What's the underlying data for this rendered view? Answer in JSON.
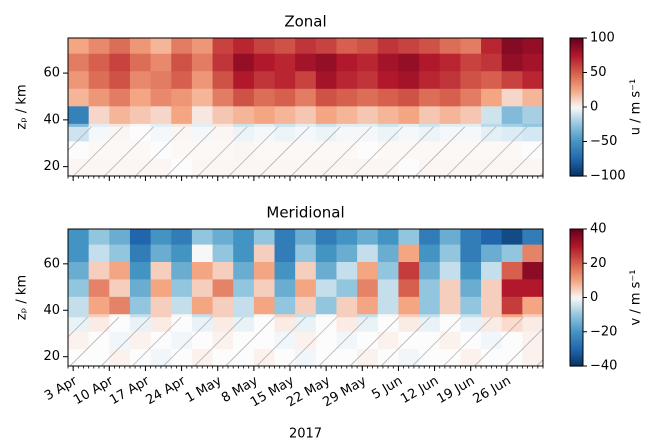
{
  "chart_data": [
    {
      "type": "heatmap",
      "title": "Zonal",
      "ylabel": "zₚ / km",
      "colorbar_label": "u / m s⁻¹",
      "colormap": "RdBu_r",
      "clim": [
        -100,
        100
      ],
      "cticks": [
        {
          "value": -100,
          "label": "−100"
        },
        {
          "value": -50,
          "label": "−50"
        },
        0,
        50,
        100
      ],
      "xlim": [
        "2017-04-02",
        "2017-07-03"
      ],
      "xticks": [
        "2017-04-03",
        "2017-04-10",
        "2017-04-17",
        "2017-04-24",
        "2017-05-01",
        "2017-05-08",
        "2017-05-15",
        "2017-05-22",
        "2017-05-29",
        "2017-06-05",
        "2017-06-12",
        "2017-06-19",
        "2017-06-26"
      ],
      "ylim": [
        16,
        75
      ],
      "yticks": [
        20,
        40,
        60
      ],
      "hatch_below": 37,
      "x": [
        "2017-04-02",
        "2017-04-06",
        "2017-04-10",
        "2017-04-14",
        "2017-04-18",
        "2017-04-22",
        "2017-04-26",
        "2017-04-30",
        "2017-05-04",
        "2017-05-08",
        "2017-05-12",
        "2017-05-16",
        "2017-05-20",
        "2017-05-24",
        "2017-05-28",
        "2017-06-01",
        "2017-06-05",
        "2017-06-09",
        "2017-06-13",
        "2017-06-17",
        "2017-06-21",
        "2017-06-25",
        "2017-06-29"
      ],
      "y": [
        16,
        23.5,
        31,
        38.5,
        46,
        53.5,
        61,
        68.5
      ],
      "z": [
        [
          5,
          5,
          5,
          5,
          5,
          0,
          5,
          5,
          5,
          5,
          5,
          5,
          5,
          5,
          5,
          5,
          0,
          5,
          5,
          5,
          5,
          5,
          5
        ],
        [
          0,
          3,
          3,
          3,
          0,
          3,
          3,
          3,
          5,
          3,
          3,
          3,
          3,
          3,
          0,
          3,
          3,
          3,
          3,
          3,
          3,
          3,
          0
        ],
        [
          -30,
          -5,
          5,
          0,
          -5,
          5,
          -5,
          5,
          -10,
          -5,
          -10,
          -5,
          -10,
          -5,
          -5,
          -10,
          -5,
          -10,
          -5,
          -5,
          -15,
          -20,
          -25
        ],
        [
          -60,
          10,
          20,
          15,
          10,
          25,
          5,
          15,
          20,
          25,
          20,
          15,
          25,
          20,
          15,
          20,
          25,
          15,
          20,
          15,
          -10,
          -30,
          -20
        ],
        [
          20,
          30,
          40,
          25,
          35,
          30,
          20,
          40,
          55,
          45,
          50,
          40,
          55,
          50,
          45,
          50,
          55,
          45,
          50,
          40,
          25,
          10,
          20
        ],
        [
          30,
          45,
          55,
          35,
          40,
          50,
          30,
          55,
          75,
          65,
          70,
          60,
          80,
          70,
          65,
          75,
          80,
          70,
          65,
          55,
          50,
          60,
          70
        ],
        [
          40,
          50,
          60,
          45,
          35,
          55,
          40,
          65,
          85,
          75,
          70,
          80,
          85,
          75,
          70,
          80,
          85,
          75,
          70,
          60,
          65,
          85,
          80
        ],
        [
          25,
          35,
          45,
          30,
          20,
          40,
          30,
          60,
          70,
          60,
          55,
          65,
          60,
          50,
          55,
          65,
          60,
          55,
          45,
          40,
          70,
          90,
          85
        ]
      ]
    },
    {
      "type": "heatmap",
      "title": "Meridional",
      "ylabel": "zₚ / km",
      "colorbar_label": "v / m s⁻¹",
      "colormap": "RdBu_r",
      "clim": [
        -40,
        40
      ],
      "cticks": [
        {
          "value": -40,
          "label": "−40"
        },
        {
          "value": -20,
          "label": "−20"
        },
        0,
        20,
        40
      ],
      "xlim": [
        "2017-04-02",
        "2017-07-03"
      ],
      "xticks": [
        {
          "value": "2017-04-03",
          "label": "3 Apr"
        },
        {
          "value": "2017-04-10",
          "label": "10 Apr"
        },
        {
          "value": "2017-04-17",
          "label": "17 Apr"
        },
        {
          "value": "2017-04-24",
          "label": "24 Apr"
        },
        {
          "value": "2017-05-01",
          "label": "1 May"
        },
        {
          "value": "2017-05-08",
          "label": "8 May"
        },
        {
          "value": "2017-05-15",
          "label": "15 May"
        },
        {
          "value": "2017-05-22",
          "label": "22 May"
        },
        {
          "value": "2017-05-29",
          "label": "29 May"
        },
        {
          "value": "2017-06-05",
          "label": "5 Jun"
        },
        {
          "value": "2017-06-12",
          "label": "12 Jun"
        },
        {
          "value": "2017-06-19",
          "label": "19 Jun"
        },
        {
          "value": "2017-06-26",
          "label": "26 Jun"
        }
      ],
      "xlabel": "2017",
      "ylim": [
        16,
        75
      ],
      "yticks": [
        20,
        40,
        60
      ],
      "hatch_below": 37,
      "x": [
        "2017-04-02",
        "2017-04-06",
        "2017-04-10",
        "2017-04-14",
        "2017-04-18",
        "2017-04-22",
        "2017-04-26",
        "2017-04-30",
        "2017-05-04",
        "2017-05-08",
        "2017-05-12",
        "2017-05-16",
        "2017-05-20",
        "2017-05-24",
        "2017-05-28",
        "2017-06-01",
        "2017-06-05",
        "2017-06-09",
        "2017-06-13",
        "2017-06-17",
        "2017-06-21",
        "2017-06-25",
        "2017-06-29"
      ],
      "y": [
        16,
        23.5,
        31,
        38.5,
        46,
        53.5,
        61,
        68.5
      ],
      "z": [
        [
          0,
          0,
          3,
          0,
          -3,
          0,
          3,
          0,
          0,
          3,
          0,
          -3,
          0,
          0,
          3,
          0,
          -3,
          0,
          0,
          3,
          0,
          0,
          3
        ],
        [
          3,
          0,
          -3,
          3,
          0,
          -3,
          0,
          3,
          0,
          0,
          -3,
          3,
          0,
          -3,
          0,
          3,
          0,
          0,
          3,
          0,
          -3,
          0,
          3
        ],
        [
          -5,
          5,
          0,
          -5,
          5,
          0,
          -5,
          5,
          -5,
          0,
          5,
          -5,
          0,
          5,
          -5,
          0,
          5,
          -5,
          0,
          -5,
          5,
          10,
          5
        ],
        [
          -5,
          10,
          15,
          -10,
          5,
          -5,
          10,
          5,
          -5,
          10,
          -10,
          5,
          -10,
          5,
          10,
          -5,
          10,
          -10,
          5,
          -10,
          5,
          25,
          10
        ],
        [
          -10,
          15,
          5,
          -15,
          10,
          -10,
          5,
          15,
          -10,
          5,
          -15,
          10,
          -5,
          -10,
          15,
          -5,
          20,
          -10,
          5,
          -15,
          5,
          30,
          30
        ],
        [
          -15,
          5,
          10,
          -20,
          5,
          -15,
          10,
          5,
          -15,
          10,
          -20,
          5,
          -15,
          -5,
          10,
          -10,
          25,
          -15,
          -5,
          -20,
          -5,
          20,
          35
        ],
        [
          -20,
          -5,
          -10,
          -25,
          -15,
          -20,
          0,
          -10,
          -20,
          5,
          -25,
          -10,
          -20,
          -15,
          -5,
          -15,
          10,
          -20,
          -10,
          -25,
          -15,
          -10,
          15
        ],
        [
          -20,
          -10,
          -15,
          -30,
          -20,
          -25,
          -10,
          -15,
          -20,
          -10,
          -25,
          -15,
          -25,
          -20,
          -15,
          -20,
          -10,
          -25,
          -15,
          -25,
          -30,
          -35,
          -25
        ]
      ]
    }
  ]
}
